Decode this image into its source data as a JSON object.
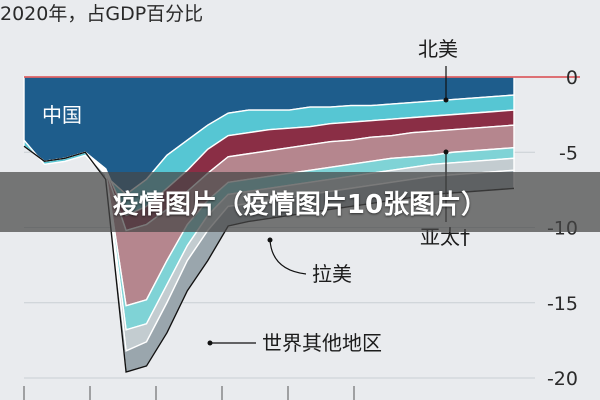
{
  "banner": {
    "text": "疫情图片（疫情图片10张图片）"
  },
  "chart_data": {
    "type": "area",
    "title": "2020年，占GDP百分比",
    "xlabel": "",
    "ylabel": "",
    "ylim": [
      -20,
      0
    ],
    "yticks": [
      0,
      -5,
      -10,
      -15,
      -20
    ],
    "ytick_labels": [
      "0",
      "-5",
      "-10",
      "-15",
      "-20"
    ],
    "grid": true,
    "x": [
      0,
      1,
      2,
      3,
      4,
      5,
      6,
      7,
      8,
      9,
      10,
      11,
      12,
      13,
      14,
      15,
      16,
      17,
      18,
      19,
      20,
      21,
      22,
      23,
      24
    ],
    "series": [
      {
        "name": "中国",
        "color": "#1e5d8c",
        "values": [
          -4.2,
          -5.8,
          -5.6,
          -5.2,
          -6.6,
          -7.8,
          -6.8,
          -5.2,
          -4.2,
          -3.2,
          -2.4,
          -2.2,
          -2.2,
          -2.2,
          -2.0,
          -2.0,
          -1.9,
          -1.9,
          -1.8,
          -1.7,
          -1.6,
          -1.5,
          -1.4,
          -1.3,
          -1.2
        ]
      },
      {
        "name": "北美",
        "color": "#56c6d3",
        "values": [
          -4.6,
          -5.6,
          -5.4,
          -5.0,
          -6.1,
          -9.2,
          -8.6,
          -7.4,
          -6.2,
          -4.8,
          -3.9,
          -3.7,
          -3.5,
          -3.4,
          -3.3,
          -3.1,
          -3.0,
          -2.9,
          -2.8,
          -2.7,
          -2.6,
          -2.5,
          -2.4,
          -2.3,
          -2.2
        ]
      },
      {
        "name": "",
        "color": "#8a2e45",
        "values": [
          -4.6,
          -5.6,
          -5.4,
          -5.0,
          -6.2,
          -10.2,
          -9.8,
          -8.8,
          -7.6,
          -6.4,
          -5.3,
          -5.1,
          -4.9,
          -4.7,
          -4.5,
          -4.3,
          -4.2,
          -4.0,
          -3.9,
          -3.7,
          -3.6,
          -3.5,
          -3.4,
          -3.3,
          -3.2
        ]
      },
      {
        "name": "亚太†",
        "color": "#b5868e",
        "values": [
          -4.6,
          -5.6,
          -5.4,
          -5.0,
          -6.3,
          -15.2,
          -14.8,
          -12.2,
          -9.8,
          -8.2,
          -7.0,
          -6.8,
          -6.6,
          -6.4,
          -6.2,
          -6.0,
          -5.8,
          -5.6,
          -5.4,
          -5.3,
          -5.2,
          -5.0,
          -4.9,
          -4.8,
          -4.7
        ]
      },
      {
        "name": "",
        "color": "#7fd3d6",
        "values": [
          -4.6,
          -5.6,
          -5.4,
          -5.0,
          -6.4,
          -16.8,
          -16.4,
          -13.8,
          -11.2,
          -9.2,
          -7.8,
          -7.6,
          -7.4,
          -7.2,
          -7.0,
          -6.8,
          -6.6,
          -6.4,
          -6.2,
          -6.0,
          -5.8,
          -5.7,
          -5.6,
          -5.5,
          -5.4
        ]
      },
      {
        "name": "拉美",
        "color": "#c3ccd0",
        "values": [
          -4.6,
          -5.6,
          -5.4,
          -5.0,
          -6.5,
          -18.2,
          -17.6,
          -15.0,
          -12.2,
          -10.2,
          -8.6,
          -8.4,
          -8.2,
          -8.0,
          -7.8,
          -7.6,
          -7.4,
          -7.2,
          -7.0,
          -6.8,
          -6.6,
          -6.5,
          -6.4,
          -6.3,
          -6.2
        ]
      },
      {
        "name": "世界其他地区",
        "color": "#9aa6ad",
        "values": [
          -4.6,
          -5.6,
          -5.4,
          -5.0,
          -6.8,
          -19.6,
          -19.2,
          -17.0,
          -14.2,
          -12.2,
          -9.9,
          -9.6,
          -9.4,
          -9.2,
          -9.0,
          -8.8,
          -8.6,
          -8.4,
          -8.2,
          -8.0,
          -7.8,
          -7.7,
          -7.6,
          -7.5,
          -7.4
        ]
      }
    ]
  }
}
